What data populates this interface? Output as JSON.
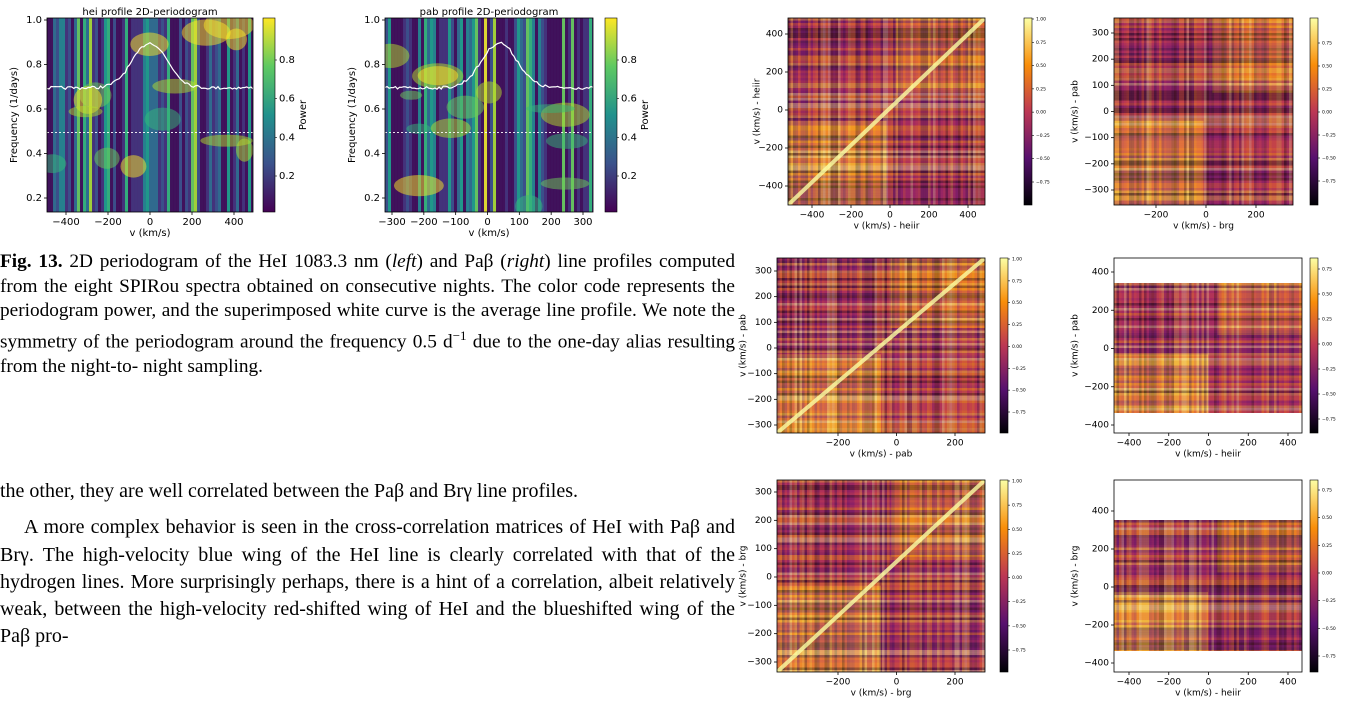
{
  "figure13": {
    "panels": [
      {
        "title": "hei profile 2D-periodogram",
        "xlabel": "v (km/s)",
        "ylabel": "Frequency (1/days)",
        "colorbar_label": "Power",
        "xticks": [
          "−400",
          "−200",
          "0",
          "200",
          "400"
        ],
        "yticks": [
          "0.2",
          "0.4",
          "0.6",
          "0.8",
          "1.0"
        ],
        "colorbar_ticks": [
          "0.2",
          "0.4",
          "0.6",
          "0.8"
        ]
      },
      {
        "title": "pab profile 2D-periodogram",
        "xlabel": "v (km/s)",
        "ylabel": "Frequency (1/days)",
        "colorbar_label": "Power",
        "xticks": [
          "−300",
          "−200",
          "−100",
          "0",
          "100",
          "200",
          "300"
        ],
        "yticks": [
          "0.2",
          "0.4",
          "0.6",
          "0.8",
          "1.0"
        ],
        "colorbar_ticks": [
          "0.2",
          "0.4",
          "0.6",
          "0.8"
        ]
      }
    ],
    "caption": {
      "label": "Fig. 13.",
      "parts": [
        "2D periodogram of the HeI 1083.3 nm (",
        "left",
        ") and Paβ (",
        "right",
        ") line profiles computed from the eight SPIRou spectra obtained on consecutive nights. The color code represents the periodogram power, and the superimposed white curve is the average line profile. We note the symmetry of the periodogram around the frequency 0.5 d",
        "−1",
        " due to the one-day alias resulting from the night-to- night sampling."
      ]
    }
  },
  "text": {
    "paragraphs": [
      "the other, they are well correlated between the Paβ and Brγ line profiles.",
      "A more complex behavior is seen in the cross-correlation matrices of HeI with Paβ and Brγ. The high-velocity blue wing of the HeI line is clearly correlated with that of the hydrogen lines. More surprisingly perhaps, there is a hint of a correlation, albeit relatively weak, between the high-velocity red-shifted wing of HeI and the blueshifted wing of the Paβ pro-"
    ]
  },
  "figure_matrices": {
    "panels": [
      {
        "xlabel": "v (km/s) - heiir",
        "ylabel": "v (km/s) - heiir",
        "xticks": [
          "−400",
          "−200",
          "0",
          "200",
          "400"
        ],
        "yticks": [
          "400",
          "200",
          "0",
          "−200",
          "−400"
        ],
        "colorbar_ticks": [
          "1.00",
          "0.75",
          "0.50",
          "0.25",
          "0.00",
          "−0.25",
          "−0.50",
          "−0.75"
        ]
      },
      {
        "xlabel": "v (km/s) - brg",
        "ylabel": "v (km/s) - pab",
        "xticks": [
          "−200",
          "0",
          "200"
        ],
        "yticks": [
          "300",
          "200",
          "100",
          "0",
          "−100",
          "−200",
          "−300"
        ],
        "colorbar_ticks": [
          "0.75",
          "0.50",
          "0.25",
          "0.00",
          "−0.25",
          "−0.50",
          "−0.75"
        ]
      },
      {
        "xlabel": "v (km/s) - pab",
        "ylabel": "v (km/s) - pab",
        "xticks": [
          "−200",
          "0",
          "200"
        ],
        "yticks": [
          "300",
          "200",
          "100",
          "0",
          "−100",
          "−200",
          "−300"
        ],
        "colorbar_ticks": [
          "1.00",
          "0.75",
          "0.50",
          "0.25",
          "0.00",
          "−0.25",
          "−0.50",
          "−0.75"
        ]
      },
      {
        "xlabel": "v (km/s) - heiir",
        "ylabel": "v (km/s) - pab",
        "xticks": [
          "−400",
          "−200",
          "0",
          "200",
          "400"
        ],
        "yticks": [
          "400",
          "200",
          "0",
          "−200",
          "−400"
        ],
        "colorbar_ticks": [
          "0.75",
          "0.50",
          "0.25",
          "0.00",
          "−0.25",
          "−0.50",
          "−0.75"
        ]
      },
      {
        "xlabel": "v (km/s) - brg",
        "ylabel": "v (km/s) - brg",
        "xticks": [
          "−200",
          "0",
          "200"
        ],
        "yticks": [
          "300",
          "200",
          "100",
          "0",
          "−100",
          "−200",
          "−300"
        ],
        "colorbar_ticks": [
          "1.00",
          "0.75",
          "0.50",
          "0.25",
          "0.00",
          "−0.25",
          "−0.50",
          "−0.75"
        ]
      },
      {
        "xlabel": "v (km/s) - heiir",
        "ylabel": "v (km/s) - brg",
        "xticks": [
          "−400",
          "−200",
          "0",
          "200",
          "400"
        ],
        "yticks": [
          "400",
          "200",
          "0",
          "−200",
          "−400"
        ],
        "colorbar_ticks": [
          "0.75",
          "0.50",
          "0.25",
          "0.00",
          "−0.25",
          "−0.50",
          "−0.75"
        ]
      }
    ]
  }
}
